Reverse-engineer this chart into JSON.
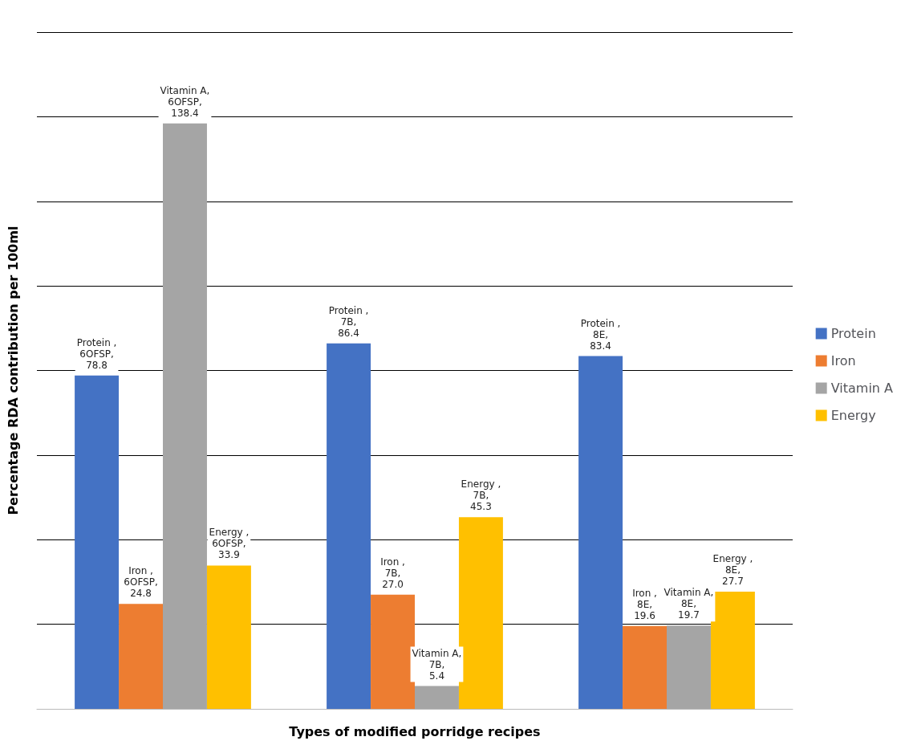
{
  "chart_data": {
    "type": "bar",
    "xlabel": "Types of modified porridge recipes",
    "ylabel": "Percentage RDA contribution per 100ml",
    "categories": [
      null,
      null,
      null
    ],
    "series": [
      {
        "name": "Protein",
        "color": "#4472c4",
        "values": [
          78.8,
          86.4,
          83.4
        ],
        "value_labels": [
          "Protein , 6OFSP, 78.8",
          "Protein , 7B, 86.4",
          "Protein , 8E, 83.4"
        ]
      },
      {
        "name": "Iron",
        "color": "#ed7d31",
        "values": [
          24.8,
          27.0,
          19.6
        ],
        "value_labels": [
          "Iron , 6OFSP, 24.8",
          "Iron , 7B, 27.0",
          "Iron , 8E, 19.6"
        ]
      },
      {
        "name": "Vitamin A",
        "color": "#a5a5a5",
        "values": [
          138.4,
          5.4,
          19.7
        ],
        "value_labels": [
          "Vitamin A, 6OFSP, 138.4",
          "Vitamin A, 7B, 5.4",
          "Vitamin A, 8E, 19.7"
        ]
      },
      {
        "name": "Energy",
        "color": "#ffc000",
        "values": [
          33.9,
          45.3,
          27.7
        ],
        "value_labels": [
          "Energy , 6OFSP, 33.9",
          "Energy , 7B, 45.3",
          "Energy , 8E, 27.7"
        ]
      }
    ],
    "ylim": [
      0,
      160
    ],
    "yticks": [
      {
        "value": 0,
        "label": null
      },
      {
        "value": 20,
        "label": null
      },
      {
        "value": 40,
        "label": null
      },
      {
        "value": 60,
        "label": null
      },
      {
        "value": 80,
        "label": null
      },
      {
        "value": 100,
        "label": null
      },
      {
        "value": 120,
        "label": null
      },
      {
        "value": 140,
        "label": null
      },
      {
        "value": 160,
        "label": null
      }
    ],
    "grid": "y",
    "legend": "right"
  }
}
